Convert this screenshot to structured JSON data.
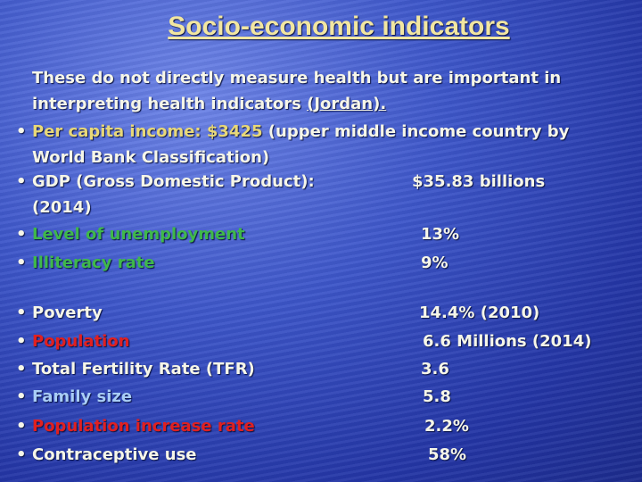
{
  "title": "Socio-economic indicators",
  "intro": {
    "text": "These do not directly measure health but are important in interpreting health indicators",
    "underlined": "(Jordan)."
  },
  "per_capita": {
    "label": "Per capita income:  $3425",
    "note": "(upper middle income country by World Bank Classification)"
  },
  "gdp": {
    "label": "GDP (Gross Domestic Product):",
    "value": "$35.83 billions",
    "note": "(2014)"
  },
  "indicators": [
    {
      "label": "Level of unemployment",
      "value": "13%"
    },
    {
      "label": "Illiteracy rate",
      "value": "9%"
    },
    {
      "label": "Poverty",
      "value": "14.4% (2010)"
    },
    {
      "label": "Population",
      "value": "6.6 Millions (2014)"
    },
    {
      "label": "Total Fertility Rate (TFR)",
      "value": "3.6"
    },
    {
      "label": "Family size",
      "value": "5.8"
    },
    {
      "label": "Population increase rate",
      "value": "2.2%"
    },
    {
      "label": "Contraceptive use",
      "value": "58%"
    }
  ]
}
